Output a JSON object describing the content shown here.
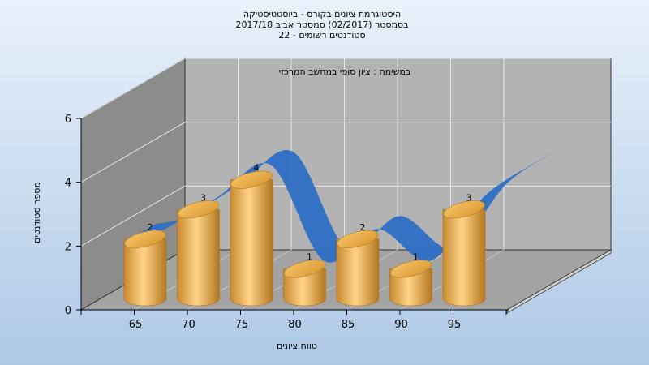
{
  "chart_data": {
    "type": "bar",
    "title_lines": [
      "היסטוגרמת ציונים בקורס - ביוסטטיסטיקה",
      "בסמסטר  (02/2017)  סמסטר אביב 2017/18",
      "סטודנטים רשומים - 22"
    ],
    "subtitle": "במשימה : ציון סופי במחשב המרכזי",
    "xlabel": "טווח ציונים",
    "ylabel": "מספר סטודנטים",
    "categories": [
      "65",
      "70",
      "75",
      "80",
      "85",
      "90",
      "95"
    ],
    "values": [
      2,
      3,
      4,
      1,
      2,
      1,
      3
    ],
    "data_labels": [
      "2",
      "3",
      "4",
      "1",
      "2",
      "1",
      "3"
    ],
    "y_ticks": [
      "0",
      "2",
      "4",
      "6"
    ],
    "ylim": [
      0,
      6
    ],
    "grid": true,
    "colors": {
      "bar": "#f0b24f",
      "curve": "#2f6fc4",
      "background_top": "#e9f2fc",
      "background_bottom": "#aec8e6",
      "back_wall": "#b3b3b3",
      "side_wall": "#8c8c8c",
      "floor": "#a3a3a3"
    }
  }
}
